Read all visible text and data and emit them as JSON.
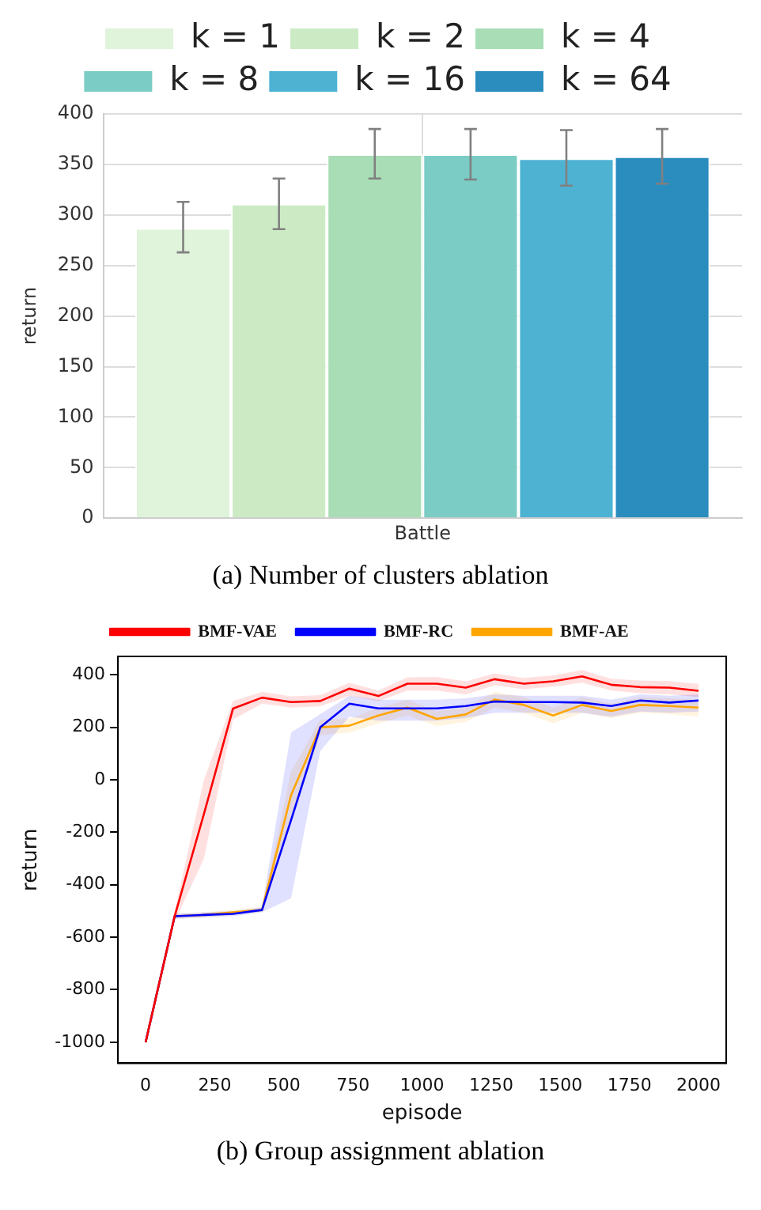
{
  "chart_data": [
    {
      "type": "bar",
      "categories": [
        "Battle"
      ],
      "ylabel": "return",
      "ylim": [
        0,
        400
      ],
      "yticks": [
        0,
        50,
        100,
        150,
        200,
        250,
        300,
        350,
        400
      ],
      "grid": true,
      "legend": "top",
      "annotations": [
        "(a) Number of clusters ablation"
      ],
      "series": [
        {
          "name": "k = 1",
          "color": "#e0f3db",
          "values": [
            287
          ],
          "errors": [
            [
              263,
              313
            ]
          ]
        },
        {
          "name": "k = 2",
          "color": "#ccebc5",
          "values": [
            311
          ],
          "errors": [
            [
              286,
              336
            ]
          ]
        },
        {
          "name": "k = 4",
          "color": "#a8ddb5",
          "values": [
            360
          ],
          "errors": [
            [
              336,
              385
            ]
          ]
        },
        {
          "name": "k = 8",
          "color": "#7bccc4",
          "values": [
            360
          ],
          "errors": [
            [
              335,
              385
            ]
          ]
        },
        {
          "name": "k = 16",
          "color": "#4eb3d3",
          "values": [
            356
          ],
          "errors": [
            [
              329,
              384
            ]
          ]
        },
        {
          "name": "k = 64",
          "color": "#2b8cbe",
          "values": [
            358
          ],
          "errors": [
            [
              331,
              385
            ]
          ]
        }
      ]
    },
    {
      "type": "line",
      "xlabel": "episode",
      "ylabel": "return",
      "xlim": [
        -100,
        2100
      ],
      "xticks": [
        0,
        250,
        500,
        750,
        1000,
        1250,
        1500,
        1750,
        2000
      ],
      "ylim": [
        -1080,
        470
      ],
      "yticks": [
        -1000,
        -800,
        -600,
        -400,
        -200,
        0,
        200,
        400
      ],
      "grid": false,
      "legend": "top",
      "marker": "none",
      "line_style": "solid",
      "annotations": [
        "(b) Group assignment ablation"
      ],
      "x": [
        0,
        105,
        211,
        316,
        421,
        526,
        632,
        737,
        842,
        947,
        1053,
        1158,
        1263,
        1368,
        1474,
        1579,
        1684,
        1789,
        1895,
        2000
      ],
      "series": [
        {
          "name": "BMF-VAE",
          "color": "#ff0000",
          "values": [
            -1000,
            -520,
            -130,
            271,
            313,
            296,
            300,
            347,
            319,
            366,
            366,
            351,
            383,
            366,
            375,
            394,
            362,
            353,
            351,
            339
          ],
          "lower": [
            -1000,
            -540,
            -300,
            230,
            290,
            275,
            280,
            320,
            300,
            340,
            340,
            325,
            360,
            345,
            355,
            370,
            340,
            330,
            325,
            315
          ],
          "upper": [
            -1000,
            -500,
            0,
            300,
            335,
            318,
            322,
            370,
            340,
            390,
            392,
            375,
            405,
            388,
            398,
            418,
            385,
            378,
            376,
            365
          ]
        },
        {
          "name": "BMF-AE",
          "color": "#ffa500",
          "values": [
            -1000,
            -520,
            -515,
            -505,
            -496,
            -59,
            200,
            206,
            245,
            275,
            232,
            249,
            306,
            285,
            245,
            285,
            262,
            285,
            281,
            275
          ],
          "lower": [
            -1000,
            -530,
            -525,
            -515,
            -505,
            -150,
            170,
            180,
            215,
            245,
            205,
            220,
            275,
            255,
            215,
            255,
            235,
            255,
            250,
            240
          ],
          "upper": [
            -1000,
            -510,
            -505,
            -495,
            -485,
            30,
            230,
            232,
            275,
            305,
            260,
            278,
            335,
            315,
            275,
            315,
            290,
            315,
            310,
            305
          ]
        },
        {
          "name": "BMF-RC",
          "color": "#0000ff",
          "values": [
            -1000,
            -520,
            -515,
            -511,
            -496,
            -154,
            200,
            290,
            272,
            272,
            272,
            281,
            298,
            296,
            296,
            294,
            281,
            302,
            294,
            302
          ],
          "lower": [
            -1000,
            -530,
            -525,
            -520,
            -505,
            -452,
            110,
            240,
            225,
            225,
            225,
            235,
            255,
            255,
            255,
            255,
            240,
            260,
            255,
            260
          ],
          "upper": [
            -1000,
            -510,
            -505,
            -500,
            -485,
            180,
            250,
            320,
            305,
            305,
            305,
            310,
            325,
            320,
            320,
            320,
            305,
            325,
            320,
            325
          ]
        }
      ]
    }
  ]
}
